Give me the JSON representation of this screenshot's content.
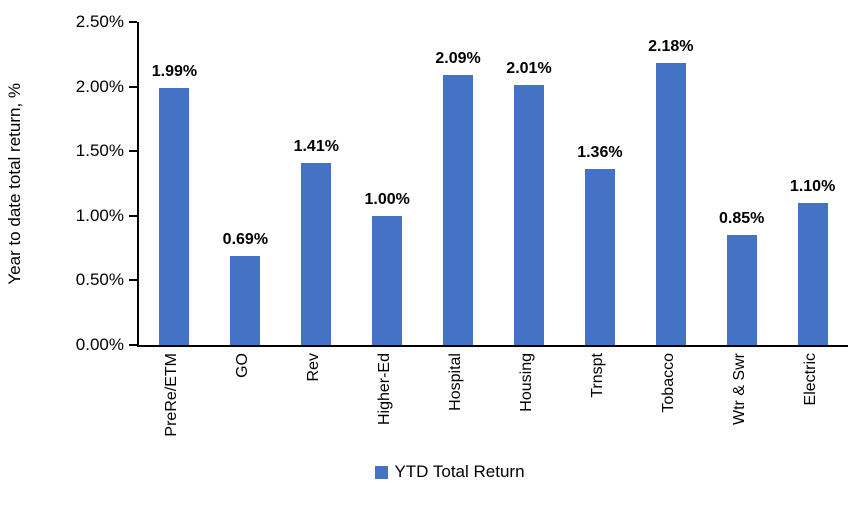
{
  "chart_data": {
    "type": "bar",
    "title": "",
    "xlabel": "",
    "ylabel": "Year to date total return, %",
    "categories": [
      "PreRe/ETM",
      "GO",
      "Rev",
      "Higher-Ed",
      "Hospital",
      "Housing",
      "Trnspt",
      "Tobacco",
      "Wtr & Swr",
      "Electric"
    ],
    "values": [
      1.99,
      0.69,
      1.41,
      1.0,
      2.09,
      2.01,
      1.36,
      2.18,
      0.85,
      1.1
    ],
    "value_labels": [
      "1.99%",
      "0.69%",
      "1.41%",
      "1.00%",
      "2.09%",
      "2.01%",
      "1.36%",
      "2.18%",
      "0.85%",
      "1.10%"
    ],
    "ylim": [
      0,
      2.5
    ],
    "yticks": [
      {
        "value": 0.0,
        "label": "0.00%"
      },
      {
        "value": 0.5,
        "label": "0.50%"
      },
      {
        "value": 1.0,
        "label": "1.00%"
      },
      {
        "value": 1.5,
        "label": "1.50%"
      },
      {
        "value": 2.0,
        "label": "2.00%"
      },
      {
        "value": 2.5,
        "label": "2.50%"
      }
    ],
    "grid": false,
    "legend": {
      "position": "bottom",
      "entries": [
        {
          "label": "YTD Total Return",
          "color": "#4472C4"
        }
      ]
    },
    "bar_color": "#4472C4",
    "axis_color": "#000000"
  }
}
